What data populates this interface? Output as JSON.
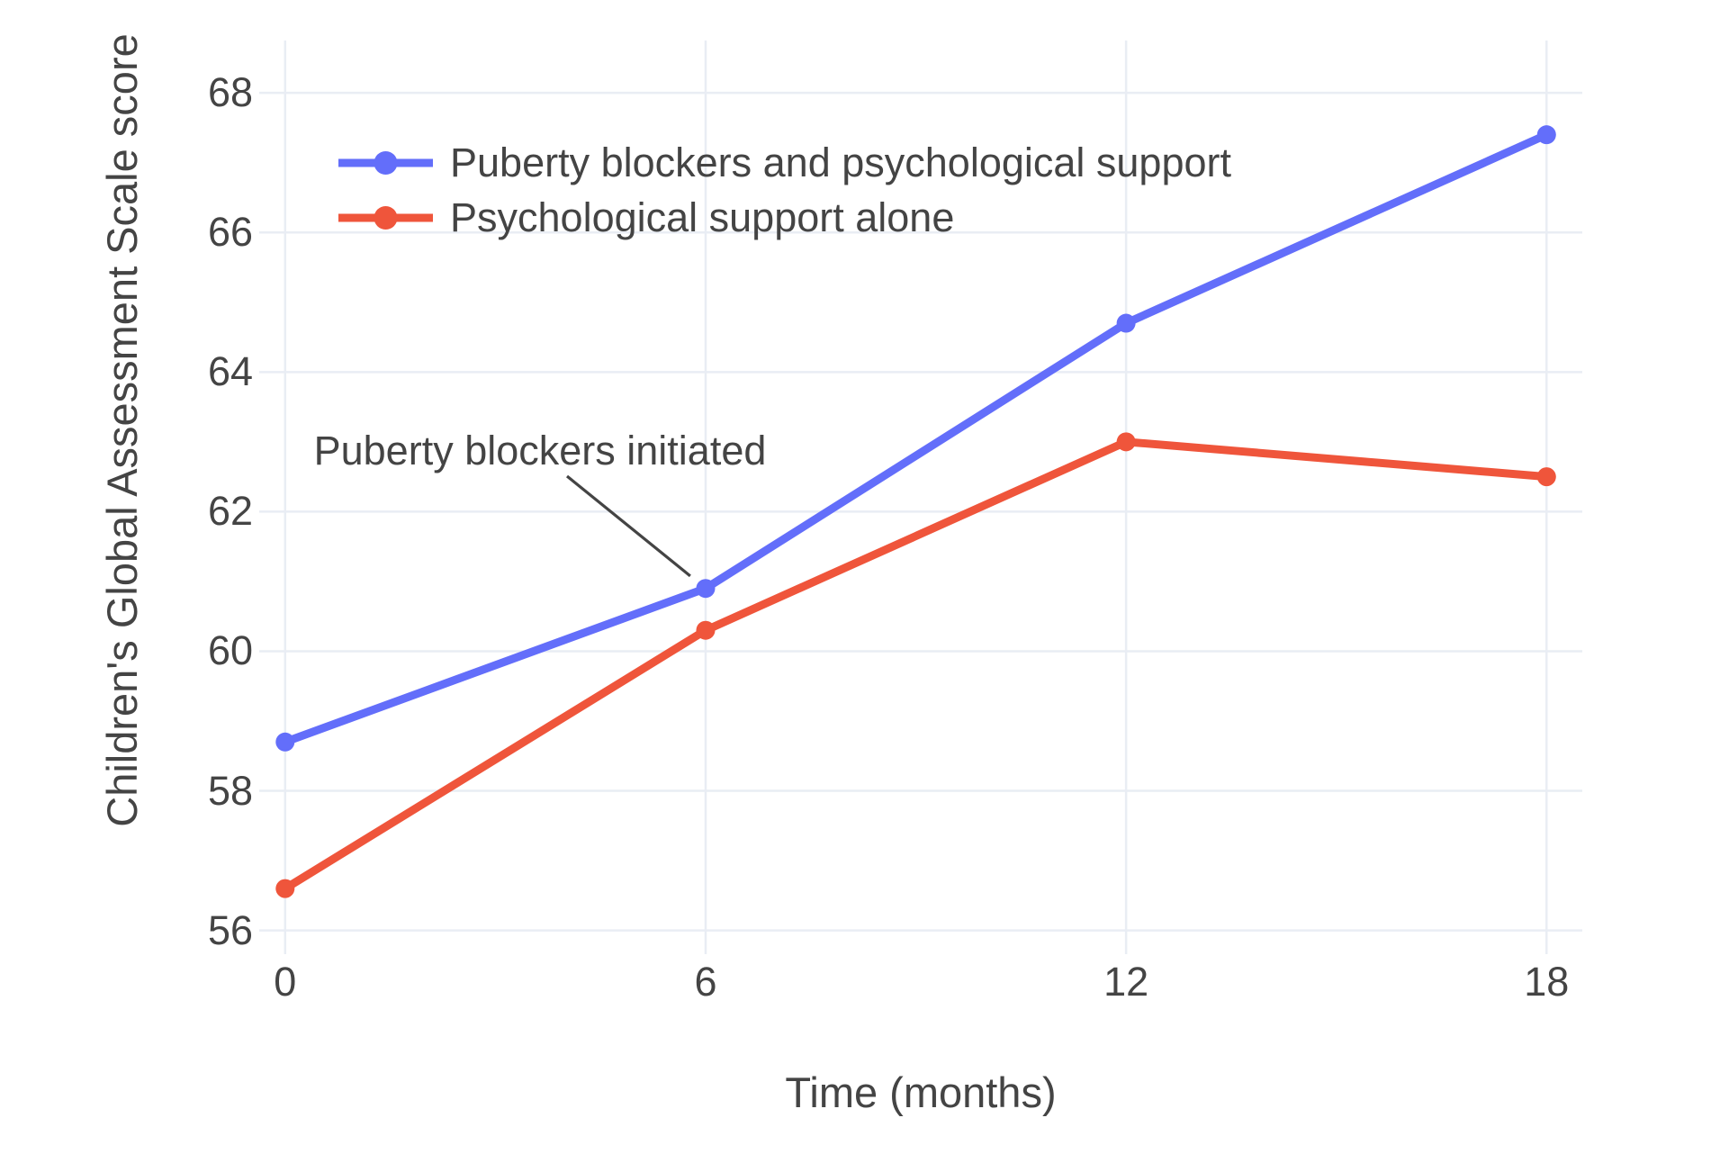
{
  "chart_data": {
    "type": "line",
    "x": [
      0,
      6,
      12,
      18
    ],
    "series": [
      {
        "name": "Puberty blockers and psychological support",
        "values": [
          58.7,
          60.9,
          64.7,
          67.4
        ],
        "color": "#636EFA"
      },
      {
        "name": "Psychological support alone",
        "values": [
          56.6,
          60.3,
          63.0,
          62.5
        ],
        "color": "#EF553B"
      }
    ],
    "title": "",
    "xlabel": "Time (months)",
    "ylabel": "Children's Global Assessment Scale score",
    "x_ticks": [
      0,
      6,
      12,
      18
    ],
    "y_ticks": [
      56,
      58,
      60,
      62,
      64,
      66,
      68
    ],
    "x_range": [
      -0.37,
      18.51
    ],
    "y_range": [
      55.66,
      68.75
    ],
    "grid": true,
    "legend_position": "inside top-left",
    "annotation": {
      "text": "Puberty blockers initiated",
      "target_series": "Puberty blockers and psychological support",
      "target_x": 6,
      "target_y": 60.9
    }
  },
  "styles": {
    "background_color": "#ffffff",
    "grid_color": "#E9EDF4",
    "text_color": "#444444",
    "annotation_arrow_color": "#444444"
  }
}
